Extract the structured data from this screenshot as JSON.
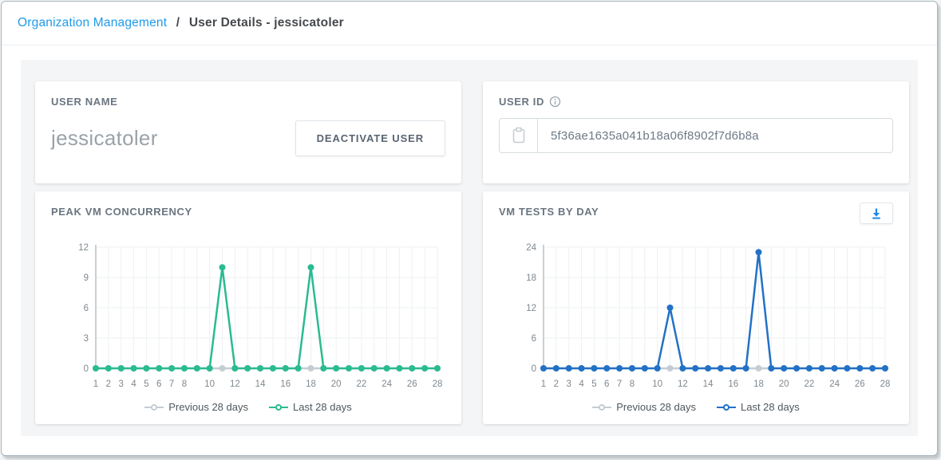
{
  "breadcrumb": {
    "link_label": "Organization Management",
    "separator": "/",
    "current": "User Details - jessicatoler"
  },
  "user_name_card": {
    "label": "USER NAME",
    "value": "jessicatoler",
    "deactivate_button_label": "DEACTIVATE USER"
  },
  "user_id_card": {
    "label": "USER ID",
    "value": "5f36ae1635a041b18a06f8902f7d6b8a",
    "icons": {
      "info": "info-icon",
      "clipboard": "clipboard-icon"
    }
  },
  "colors": {
    "link_blue": "#1e9be9",
    "teal": "#2abb90",
    "blue": "#2271c6",
    "previous_gray": "#c4cdd4",
    "grid": "#eef0f2",
    "axis": "#b8c0c7",
    "tick_text": "#7e8890",
    "download_icon_blue": "#1e88e5"
  },
  "chart_data": [
    {
      "type": "line",
      "title": "PEAK VM CONCURRENCY",
      "x": [
        1,
        2,
        3,
        4,
        5,
        6,
        7,
        8,
        9,
        10,
        11,
        12,
        13,
        14,
        15,
        16,
        17,
        18,
        19,
        20,
        21,
        22,
        23,
        24,
        25,
        26,
        27,
        28
      ],
      "x_tick_days": [
        1,
        2,
        3,
        4,
        5,
        6,
        7,
        8,
        10,
        12,
        14,
        16,
        18,
        20,
        22,
        24,
        26,
        28
      ],
      "y_ticks": [
        0,
        3,
        6,
        9,
        12
      ],
      "ylim": [
        0,
        12
      ],
      "grid": true,
      "legend_position": "bottom",
      "series": [
        {
          "name": "Previous 28 days",
          "color": "#c4cdd4",
          "values": [
            0,
            0,
            0,
            0,
            0,
            0,
            0,
            0,
            0,
            0,
            0,
            0,
            0,
            0,
            0,
            0,
            0,
            0,
            0,
            0,
            0,
            0,
            0,
            0,
            0,
            0,
            0,
            0
          ]
        },
        {
          "name": "Last 28 days",
          "color": "#2abb90",
          "values": [
            0,
            0,
            0,
            0,
            0,
            0,
            0,
            0,
            0,
            0,
            10,
            0,
            0,
            0,
            0,
            0,
            0,
            10,
            0,
            0,
            0,
            0,
            0,
            0,
            0,
            0,
            0,
            0
          ]
        }
      ]
    },
    {
      "type": "line",
      "title": "VM TESTS BY DAY",
      "has_download_button": true,
      "x": [
        1,
        2,
        3,
        4,
        5,
        6,
        7,
        8,
        9,
        10,
        11,
        12,
        13,
        14,
        15,
        16,
        17,
        18,
        19,
        20,
        21,
        22,
        23,
        24,
        25,
        26,
        27,
        28
      ],
      "x_tick_days": [
        1,
        2,
        3,
        4,
        5,
        6,
        7,
        8,
        10,
        12,
        14,
        16,
        18,
        20,
        22,
        24,
        26,
        28
      ],
      "y_ticks": [
        0,
        6,
        12,
        18,
        24
      ],
      "ylim": [
        0,
        24
      ],
      "grid": true,
      "legend_position": "bottom",
      "series": [
        {
          "name": "Previous 28 days",
          "color": "#c4cdd4",
          "values": [
            0,
            0,
            0,
            0,
            0,
            0,
            0,
            0,
            0,
            0,
            0,
            0,
            0,
            0,
            0,
            0,
            0,
            0,
            0,
            0,
            0,
            0,
            0,
            0,
            0,
            0,
            0,
            0
          ]
        },
        {
          "name": "Last 28 days",
          "color": "#2271c6",
          "values": [
            0,
            0,
            0,
            0,
            0,
            0,
            0,
            0,
            0,
            0,
            12,
            0,
            0,
            0,
            0,
            0,
            0,
            23,
            0,
            0,
            0,
            0,
            0,
            0,
            0,
            0,
            0,
            0
          ]
        }
      ]
    }
  ]
}
